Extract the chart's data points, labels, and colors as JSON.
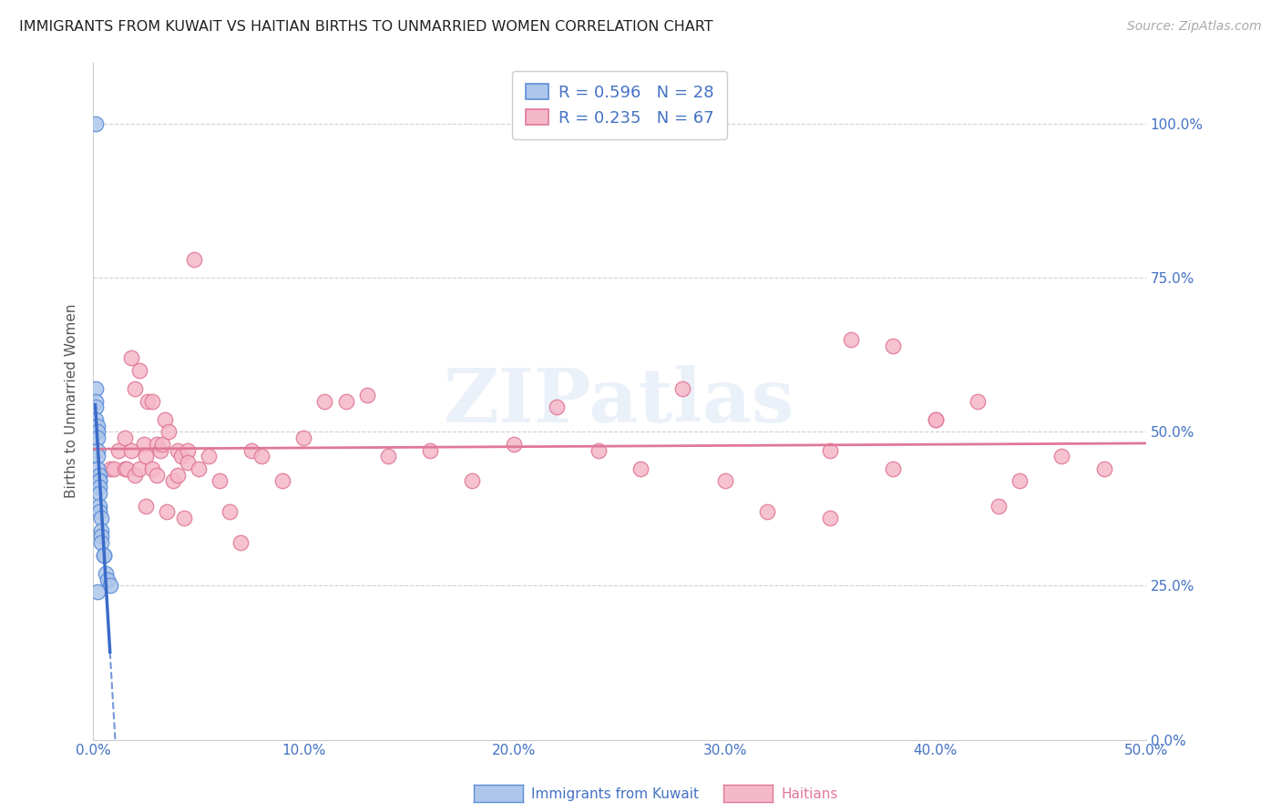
{
  "title": "IMMIGRANTS FROM KUWAIT VS HAITIAN BIRTHS TO UNMARRIED WOMEN CORRELATION CHART",
  "source": "Source: ZipAtlas.com",
  "ylabel": "Births to Unmarried Women",
  "legend_label1": "Immigrants from Kuwait",
  "legend_label2": "Haitians",
  "R1": 0.596,
  "N1": 28,
  "R2": 0.235,
  "N2": 67,
  "color_blue_fill": "#aec6ea",
  "color_blue_edge": "#5b8dd9",
  "color_pink_fill": "#f5b8c8",
  "color_pink_edge": "#e07898",
  "color_blue_line": "#3a6bc8",
  "color_pink_line": "#e07898",
  "color_axis": "#4472c4",
  "xlim": [
    0.0,
    0.5
  ],
  "ylim": [
    0.0,
    1.1
  ],
  "yticks": [
    0.0,
    0.25,
    0.5,
    0.75,
    1.0
  ],
  "ytick_labels": [
    "0.0%",
    "25.0%",
    "50.0%",
    "75.0%",
    "100.0%"
  ],
  "xticks": [
    0.0,
    0.1,
    0.2,
    0.3,
    0.4,
    0.5
  ],
  "xtick_labels": [
    "0.0%",
    "10.0%",
    "20.0%",
    "30.0%",
    "40.0%",
    "50.0%"
  ],
  "blue_x": [
    0.001,
    0.001,
    0.001,
    0.001,
    0.001,
    0.002,
    0.002,
    0.002,
    0.002,
    0.002,
    0.002,
    0.003,
    0.003,
    0.003,
    0.003,
    0.003,
    0.003,
    0.003,
    0.004,
    0.004,
    0.004,
    0.004,
    0.005,
    0.005,
    0.006,
    0.007,
    0.008,
    0.002
  ],
  "blue_y": [
    1.0,
    0.57,
    0.55,
    0.54,
    0.52,
    0.51,
    0.5,
    0.49,
    0.47,
    0.46,
    0.44,
    0.43,
    0.42,
    0.42,
    0.41,
    0.4,
    0.38,
    0.37,
    0.36,
    0.34,
    0.33,
    0.32,
    0.3,
    0.3,
    0.27,
    0.26,
    0.25,
    0.24
  ],
  "pink_x": [
    0.008,
    0.01,
    0.012,
    0.015,
    0.015,
    0.016,
    0.018,
    0.018,
    0.02,
    0.02,
    0.022,
    0.022,
    0.024,
    0.025,
    0.025,
    0.026,
    0.028,
    0.028,
    0.03,
    0.03,
    0.032,
    0.033,
    0.034,
    0.035,
    0.036,
    0.038,
    0.04,
    0.04,
    0.042,
    0.043,
    0.045,
    0.045,
    0.048,
    0.05,
    0.055,
    0.06,
    0.065,
    0.07,
    0.075,
    0.08,
    0.09,
    0.1,
    0.11,
    0.12,
    0.13,
    0.14,
    0.16,
    0.18,
    0.2,
    0.22,
    0.24,
    0.26,
    0.28,
    0.3,
    0.32,
    0.35,
    0.36,
    0.38,
    0.4,
    0.42,
    0.44,
    0.35,
    0.38,
    0.4,
    0.43,
    0.46,
    0.48
  ],
  "pink_y": [
    0.44,
    0.44,
    0.47,
    0.44,
    0.49,
    0.44,
    0.47,
    0.62,
    0.43,
    0.57,
    0.44,
    0.6,
    0.48,
    0.38,
    0.46,
    0.55,
    0.44,
    0.55,
    0.48,
    0.43,
    0.47,
    0.48,
    0.52,
    0.37,
    0.5,
    0.42,
    0.43,
    0.47,
    0.46,
    0.36,
    0.47,
    0.45,
    0.78,
    0.44,
    0.46,
    0.42,
    0.37,
    0.32,
    0.47,
    0.46,
    0.42,
    0.49,
    0.55,
    0.55,
    0.56,
    0.46,
    0.47,
    0.42,
    0.48,
    0.54,
    0.47,
    0.44,
    0.57,
    0.42,
    0.37,
    0.47,
    0.65,
    0.64,
    0.52,
    0.55,
    0.42,
    0.36,
    0.44,
    0.52,
    0.38,
    0.46,
    0.44
  ],
  "watermark_text": "ZIPatlas",
  "bg_color": "#ffffff",
  "grid_color": "#d0d0d0",
  "spine_color": "#cccccc"
}
